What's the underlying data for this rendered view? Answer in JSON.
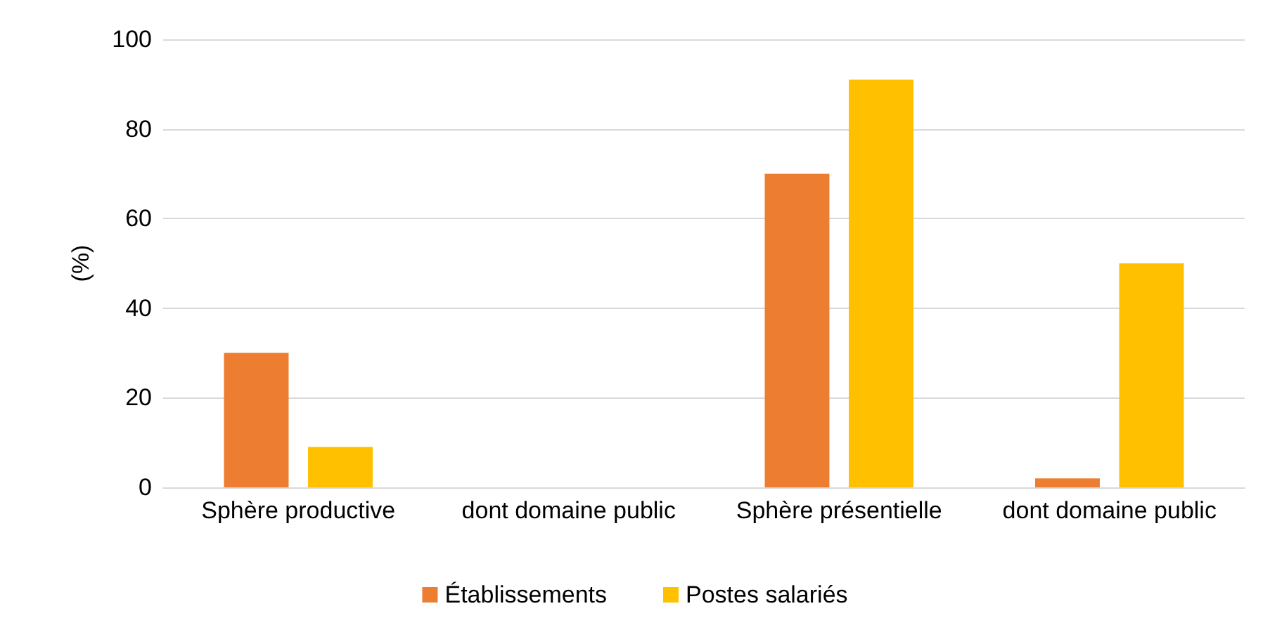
{
  "chart_data": {
    "type": "bar",
    "ylabel": "(%)",
    "categories": [
      "Sphère productive",
      "dont domaine public",
      "Sphère présentielle",
      "dont domaine public"
    ],
    "series": [
      {
        "name": "Établissements",
        "color": "#ed7d31",
        "values": [
          30,
          0,
          70,
          2
        ]
      },
      {
        "name": "Postes salariés",
        "color": "#ffc000",
        "values": [
          9,
          0,
          91,
          50
        ]
      }
    ],
    "ylim": [
      0,
      100
    ],
    "yticks": [
      0,
      20,
      40,
      60,
      80,
      100
    ],
    "grid": "y",
    "legend": "bottom"
  }
}
